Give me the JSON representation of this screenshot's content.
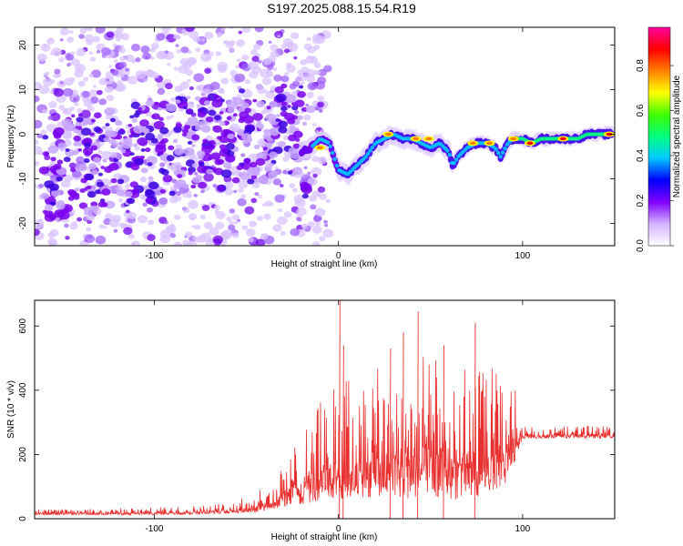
{
  "title": "S197.2025.088.15.54.R19",
  "chart_data": [
    {
      "type": "heatmap",
      "xlabel": "Height of straight line (km)",
      "ylabel": "Frequency (Hz)",
      "xlim": [
        -165,
        150
      ],
      "ylim": [
        -25,
        24
      ],
      "xticks": [
        -100,
        0,
        100
      ],
      "yticks": [
        -20,
        -10,
        0,
        10,
        20
      ],
      "colorbar": {
        "label": "Normalized spectral amplitude",
        "range": [
          0,
          0.97
        ],
        "ticks": [
          0.0,
          0.2,
          0.4,
          0.6,
          0.8
        ],
        "colors": [
          "#ffffff",
          "#d6b3ff",
          "#8000ff",
          "#0000ff",
          "#00c8ff",
          "#00ff80",
          "#40ff00",
          "#ffff00",
          "#ff8000",
          "#ff0000",
          "#ff00a0"
        ]
      },
      "ridge": {
        "x": [
          -20,
          -15,
          -10,
          -5,
          0,
          5,
          10,
          15,
          20,
          25,
          30,
          35,
          40,
          45,
          50,
          55,
          60,
          62,
          65,
          70,
          75,
          80,
          85,
          88,
          92,
          95,
          100,
          105,
          110,
          115,
          120,
          125,
          130,
          135,
          140,
          145,
          148
        ],
        "y": [
          -4,
          -3,
          -1,
          -2,
          -8,
          -9,
          -7,
          -5,
          -2,
          -1,
          0,
          -1,
          -1,
          -2,
          -3,
          -2,
          -4,
          -7,
          -5,
          -3,
          -2,
          -2,
          -3,
          -5,
          -2,
          -1,
          -1,
          -2,
          -1,
          -1,
          -1,
          -1,
          -1,
          0,
          0,
          0,
          0
        ]
      }
    },
    {
      "type": "line",
      "xlabel": "Height of straight line (km)",
      "ylabel": "SNR (10 * v/v)",
      "xlim": [
        -165,
        150
      ],
      "ylim": [
        0,
        680
      ],
      "xticks": [
        -100,
        0,
        100
      ],
      "yticks": [
        0,
        200,
        400,
        600
      ],
      "color": "#e8312f",
      "envelope": {
        "x": [
          -165,
          -140,
          -100,
          -80,
          -60,
          -45,
          -35,
          -25,
          -15,
          -5,
          0,
          5,
          10,
          20,
          30,
          40,
          50,
          60,
          70,
          80,
          90,
          95,
          98,
          100,
          110,
          120,
          130,
          140,
          150
        ],
        "lo": [
          12,
          12,
          12,
          14,
          16,
          20,
          30,
          40,
          50,
          60,
          60,
          60,
          70,
          60,
          70,
          60,
          70,
          60,
          60,
          70,
          100,
          160,
          220,
          250,
          250,
          250,
          250,
          250,
          250
        ],
        "hi": [
          30,
          30,
          35,
          40,
          50,
          80,
          120,
          220,
          330,
          400,
          460,
          440,
          460,
          480,
          500,
          520,
          510,
          500,
          480,
          480,
          480,
          440,
          320,
          290,
          280,
          285,
          290,
          290,
          300
        ]
      },
      "peaks": [
        {
          "x": 0.5,
          "y": 680
        },
        {
          "x": 2.5,
          "y": 540
        },
        {
          "x": 28,
          "y": 530
        },
        {
          "x": 35,
          "y": 580
        },
        {
          "x": 43,
          "y": 645
        },
        {
          "x": 57,
          "y": 540
        },
        {
          "x": 74,
          "y": 610
        }
      ]
    }
  ]
}
